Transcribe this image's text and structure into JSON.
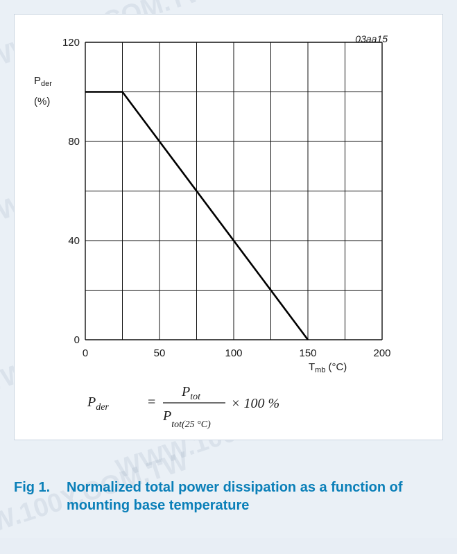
{
  "watermark": "WWW.100Y.COM.TW",
  "chart_data": {
    "type": "line",
    "reference": "03aa15",
    "ylabel_symbol": "P",
    "ylabel_sub": "der",
    "ylabel_unit": "(%)",
    "xlabel_symbol": "T",
    "xlabel_sub": "mb",
    "xlabel_unit": "(°C)",
    "xlim": [
      0,
      200
    ],
    "ylim": [
      0,
      120
    ],
    "xticks": [
      "0",
      "50",
      "100",
      "150",
      "200"
    ],
    "yticks": [
      "0",
      "40",
      "80",
      "120"
    ],
    "grid": true,
    "series": [
      {
        "x": [
          0,
          25,
          150
        ],
        "y": [
          100,
          100,
          0
        ]
      }
    ]
  },
  "formula": {
    "lhs": "P",
    "lhs_sub": "der",
    "equals": "=",
    "num": "P",
    "num_sub": "tot",
    "den": "P",
    "den_sub": "tot(25 °C)",
    "suffix": "× 100 %"
  },
  "caption": {
    "number": "Fig 1.",
    "text": "Normalized total power dissipation as a function of mounting base temperature"
  }
}
